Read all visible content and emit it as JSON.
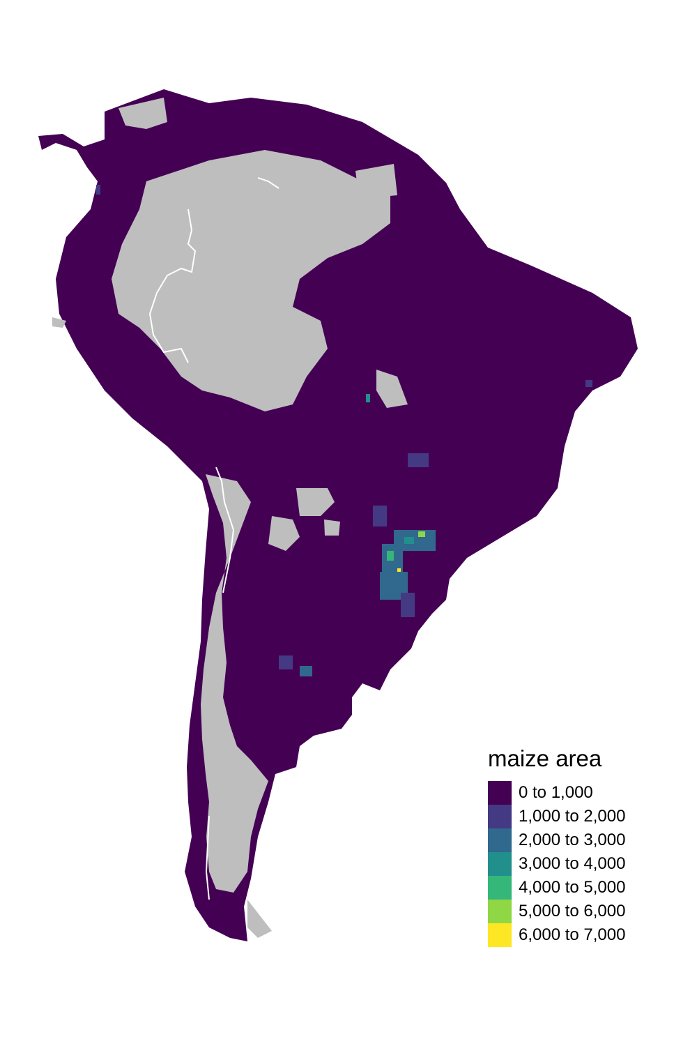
{
  "map": {
    "region": "South America",
    "no_data_color": "#bebebe",
    "border_color": "#ffffff",
    "background_color": "#ffffff"
  },
  "legend": {
    "title": "maize area",
    "classes": [
      {
        "label": "0 to 1,000",
        "color": "#440154"
      },
      {
        "label": "1,000 to 2,000",
        "color": "#443a83"
      },
      {
        "label": "2,000 to 3,000",
        "color": "#31688e"
      },
      {
        "label": "3,000 to 4,000",
        "color": "#21908d"
      },
      {
        "label": "4,000 to 5,000",
        "color": "#35b779"
      },
      {
        "label": "5,000 to 6,000",
        "color": "#8fd744"
      },
      {
        "label": "6,000 to 7,000",
        "color": "#fde725"
      }
    ]
  }
}
